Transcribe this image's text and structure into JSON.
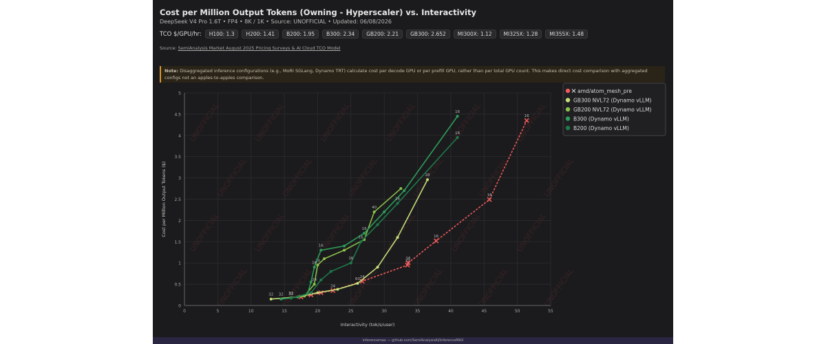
{
  "header": {
    "title": "Cost per Million Output Tokens (Owning - Hyperscaler) vs. Interactivity",
    "subtitle": "DeepSeek V4 Pro 1.6T • FP4 • 8K / 1K • Source: UNOFFICIAL • Updated: 06/08/2026",
    "tco_label": "TCO $/GPU/hr:",
    "tco_items": [
      "H100: 1.3",
      "H200: 1.41",
      "B200: 1.95",
      "B300: 2.34",
      "GB200: 2.21",
      "GB300: 2.652",
      "MI300X: 1.12",
      "MI325X: 1.28",
      "MI355X: 1.48"
    ],
    "source_label": "Source:",
    "source_link": "SemiAnalysis Market August 2025 Pricing Surveys & AI Cloud TCO Model",
    "note_label": "Note:",
    "note": "Disaggregated inference configurations (e.g., MoRI SGLang, Dynamo TRT) calculate cost per decode GPU or per prefill GPU, rather than per total GPU count. This makes direct cost comparison with aggregated configs not an apples-to-apples comparison.",
    "footer": "inferencemax — github.com/SemiAnalysisAI/InferenceMAX"
  },
  "chart_data": {
    "type": "line",
    "watermark": "UNOFFICIAL",
    "x_label": "Interactivity (tok/s/user)",
    "y_label": "Cost per Million Output Tokens ($)",
    "xlim": [
      0,
      55
    ],
    "xticks": [
      0,
      5,
      10,
      15,
      20,
      25,
      30,
      35,
      40,
      45,
      50,
      55
    ],
    "ylim": [
      0,
      5
    ],
    "yticks": [
      0,
      0.5,
      1,
      1.5,
      2,
      2.5,
      3,
      3.5,
      4,
      4.5,
      5
    ],
    "grid": true,
    "series": [
      {
        "name": "amd/atom_mesh_pre",
        "color": "#f05a5a",
        "dashed": true,
        "marker": "x",
        "x": [
          17.5,
          19,
          20.5,
          22.3,
          26.7,
          33.5,
          33.6,
          37.8,
          45.8,
          51.4
        ],
        "values": [
          0.2,
          0.25,
          0.3,
          0.35,
          0.57,
          0.95,
          1.0,
          1.52,
          2.49,
          4.35
        ],
        "point_labels": [
          null,
          null,
          null,
          24,
          24,
          32,
          16,
          16,
          16,
          16
        ]
      },
      {
        "name": "GB300 NVL72 (Dynamo vLLM)",
        "color": "#c5e07a",
        "marker": "circle",
        "x": [
          13,
          17,
          20,
          23,
          26,
          29,
          32,
          36.5
        ],
        "values": [
          0.15,
          0.2,
          0.3,
          0.38,
          0.52,
          0.9,
          1.6,
          2.96
        ],
        "point_labels": [
          32,
          null,
          null,
          null,
          60,
          null,
          null,
          28
        ]
      },
      {
        "name": "GB200 NVL72 (Dynamo vLLM)",
        "color": "#8bc34a",
        "marker": "circle",
        "x": [
          16,
          18,
          19.5,
          20,
          21,
          24,
          27,
          28.5,
          32.5
        ],
        "values": [
          0.18,
          0.22,
          0.5,
          0.95,
          1.1,
          1.3,
          1.55,
          2.2,
          2.75
        ],
        "point_labels": [
          32,
          null,
          24,
          24,
          null,
          null,
          null,
          40,
          null
        ]
      },
      {
        "name": "B300 (Dynamo vLLM)",
        "color": "#2e9e5b",
        "marker": "circle",
        "x": [
          14.5,
          17,
          18.5,
          19,
          19.5,
          20.5,
          24,
          27,
          30,
          33,
          41
        ],
        "values": [
          0.15,
          0.2,
          0.28,
          0.55,
          0.9,
          1.3,
          1.4,
          1.7,
          2.2,
          2.7,
          4.45
        ],
        "point_labels": [
          32,
          null,
          null,
          null,
          16,
          16,
          null,
          16,
          null,
          null,
          16
        ]
      },
      {
        "name": "B200 (Dynamo vLLM)",
        "color": "#1e7a4a",
        "marker": "circle",
        "x": [
          16,
          19,
          20.5,
          22,
          25,
          26.5,
          29,
          32,
          41
        ],
        "values": [
          0.17,
          0.3,
          0.6,
          0.8,
          1.0,
          1.5,
          1.9,
          2.4,
          3.95
        ],
        "point_labels": [
          32,
          null,
          null,
          null,
          16,
          16,
          null,
          16,
          16
        ]
      }
    ]
  }
}
